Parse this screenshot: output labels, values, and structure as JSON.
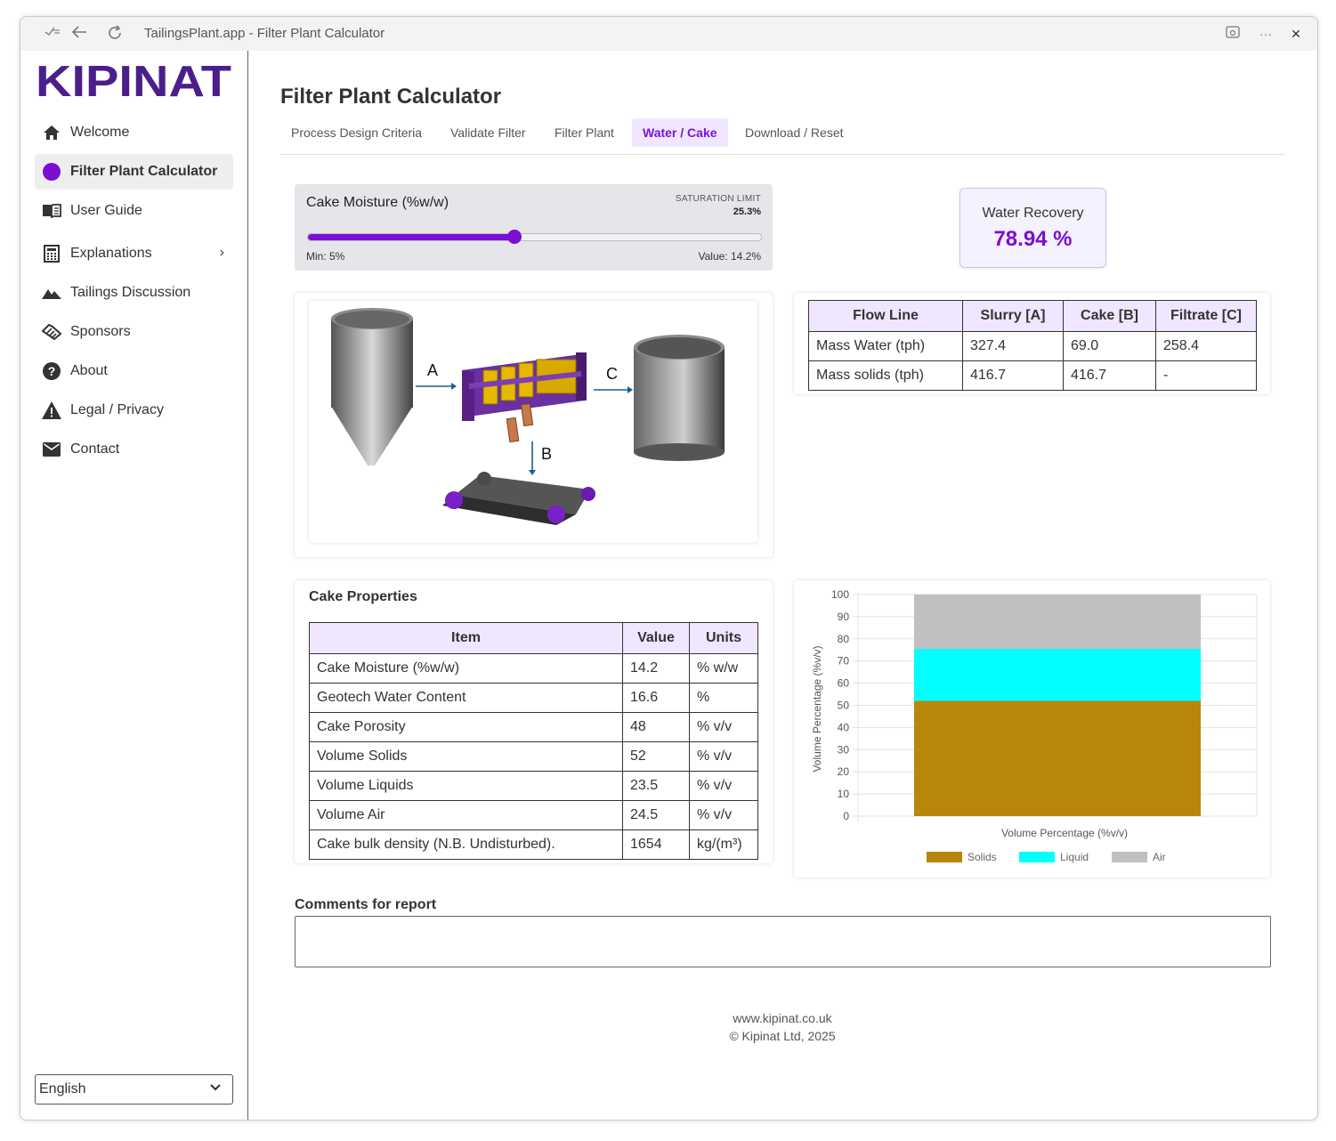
{
  "window": {
    "title": "TailingsPlant.app - Filter Plant Calculator"
  },
  "brand": {
    "logo_text": "KIPINAT",
    "accent": "#7a0fd4",
    "logo_color": "#4b1f8a"
  },
  "sidebar": {
    "items": [
      {
        "label": "Welcome",
        "icon": "home-icon"
      },
      {
        "label": "Filter Plant Calculator",
        "icon": "circle-icon",
        "active": true
      },
      {
        "label": "User Guide",
        "icon": "book-icon"
      },
      {
        "label": "Explanations",
        "icon": "calculator-icon",
        "has_submenu": true
      },
      {
        "label": "Tailings Discussion",
        "icon": "terrain-icon"
      },
      {
        "label": "Sponsors",
        "icon": "handshake-icon"
      },
      {
        "label": "About",
        "icon": "help-icon"
      },
      {
        "label": "Legal / Privacy",
        "icon": "warning-icon"
      },
      {
        "label": "Contact",
        "icon": "mail-icon"
      }
    ],
    "language": "English"
  },
  "main": {
    "title": "Filter Plant Calculator",
    "tabs": [
      {
        "label": "Process Design Criteria"
      },
      {
        "label": "Validate Filter"
      },
      {
        "label": "Filter Plant"
      },
      {
        "label": "Water / Cake",
        "active": true
      },
      {
        "label": "Download / Reset"
      }
    ]
  },
  "slider": {
    "label": "Cake Moisture (%w/w)",
    "saturation_label": "SATURATION LIMIT",
    "saturation_value": "25.3%",
    "min_text": "Min: 5%",
    "value_text": "Value: 14.2%",
    "fill_fraction": 0.455
  },
  "water_recovery": {
    "title": "Water Recovery",
    "value": "78.94 %"
  },
  "diagram": {
    "label_a": "A",
    "label_b": "B",
    "label_c": "C"
  },
  "flow_table": {
    "headers": [
      "Flow Line",
      "Slurry [A]",
      "Cake [B]",
      "Filtrate [C]"
    ],
    "rows": [
      [
        "Mass Water (tph)",
        "327.4",
        "69.0",
        "258.4"
      ],
      [
        "Mass solids (tph)",
        "416.7",
        "416.7",
        "-"
      ]
    ]
  },
  "cake_properties": {
    "title": "Cake Properties",
    "headers": [
      "Item",
      "Value",
      "Units"
    ],
    "rows": [
      [
        "Cake Moisture (%w/w)",
        "14.2",
        "% w/w"
      ],
      [
        "Geotech Water Content",
        "16.6",
        "%"
      ],
      [
        "Cake Porosity",
        "48",
        "% v/v"
      ],
      [
        "Volume Solids",
        "52",
        "% v/v"
      ],
      [
        "Volume Liquids",
        "23.5",
        "% v/v"
      ],
      [
        "Volume Air",
        "24.5",
        "% v/v"
      ],
      [
        "Cake bulk density (N.B. Undisturbed).",
        "1654",
        "kg/(m³)"
      ]
    ]
  },
  "chart_data": {
    "type": "bar",
    "stacked": true,
    "categories": [
      ""
    ],
    "series": [
      {
        "name": "Solids",
        "values": [
          52
        ],
        "color": "#b8860b"
      },
      {
        "name": "Liquid",
        "values": [
          23.5
        ],
        "color": "#00ffff"
      },
      {
        "name": "Air",
        "values": [
          24.5
        ],
        "color": "#c0c0c0"
      }
    ],
    "xlabel": "Volume Percentage (%v/v)",
    "ylabel": "Volume Percentage (%v/v)",
    "ylim": [
      0,
      100
    ],
    "yticks": [
      "0",
      "10",
      "20",
      "30",
      "40",
      "50",
      "60",
      "70",
      "80",
      "90",
      "100"
    ],
    "grid": true,
    "legend": "bottom"
  },
  "comments": {
    "label": "Comments for report",
    "value": ""
  },
  "footer": {
    "site": "www.kipinat.co.uk",
    "copyright": "© Kipinat Ltd, 2025"
  }
}
